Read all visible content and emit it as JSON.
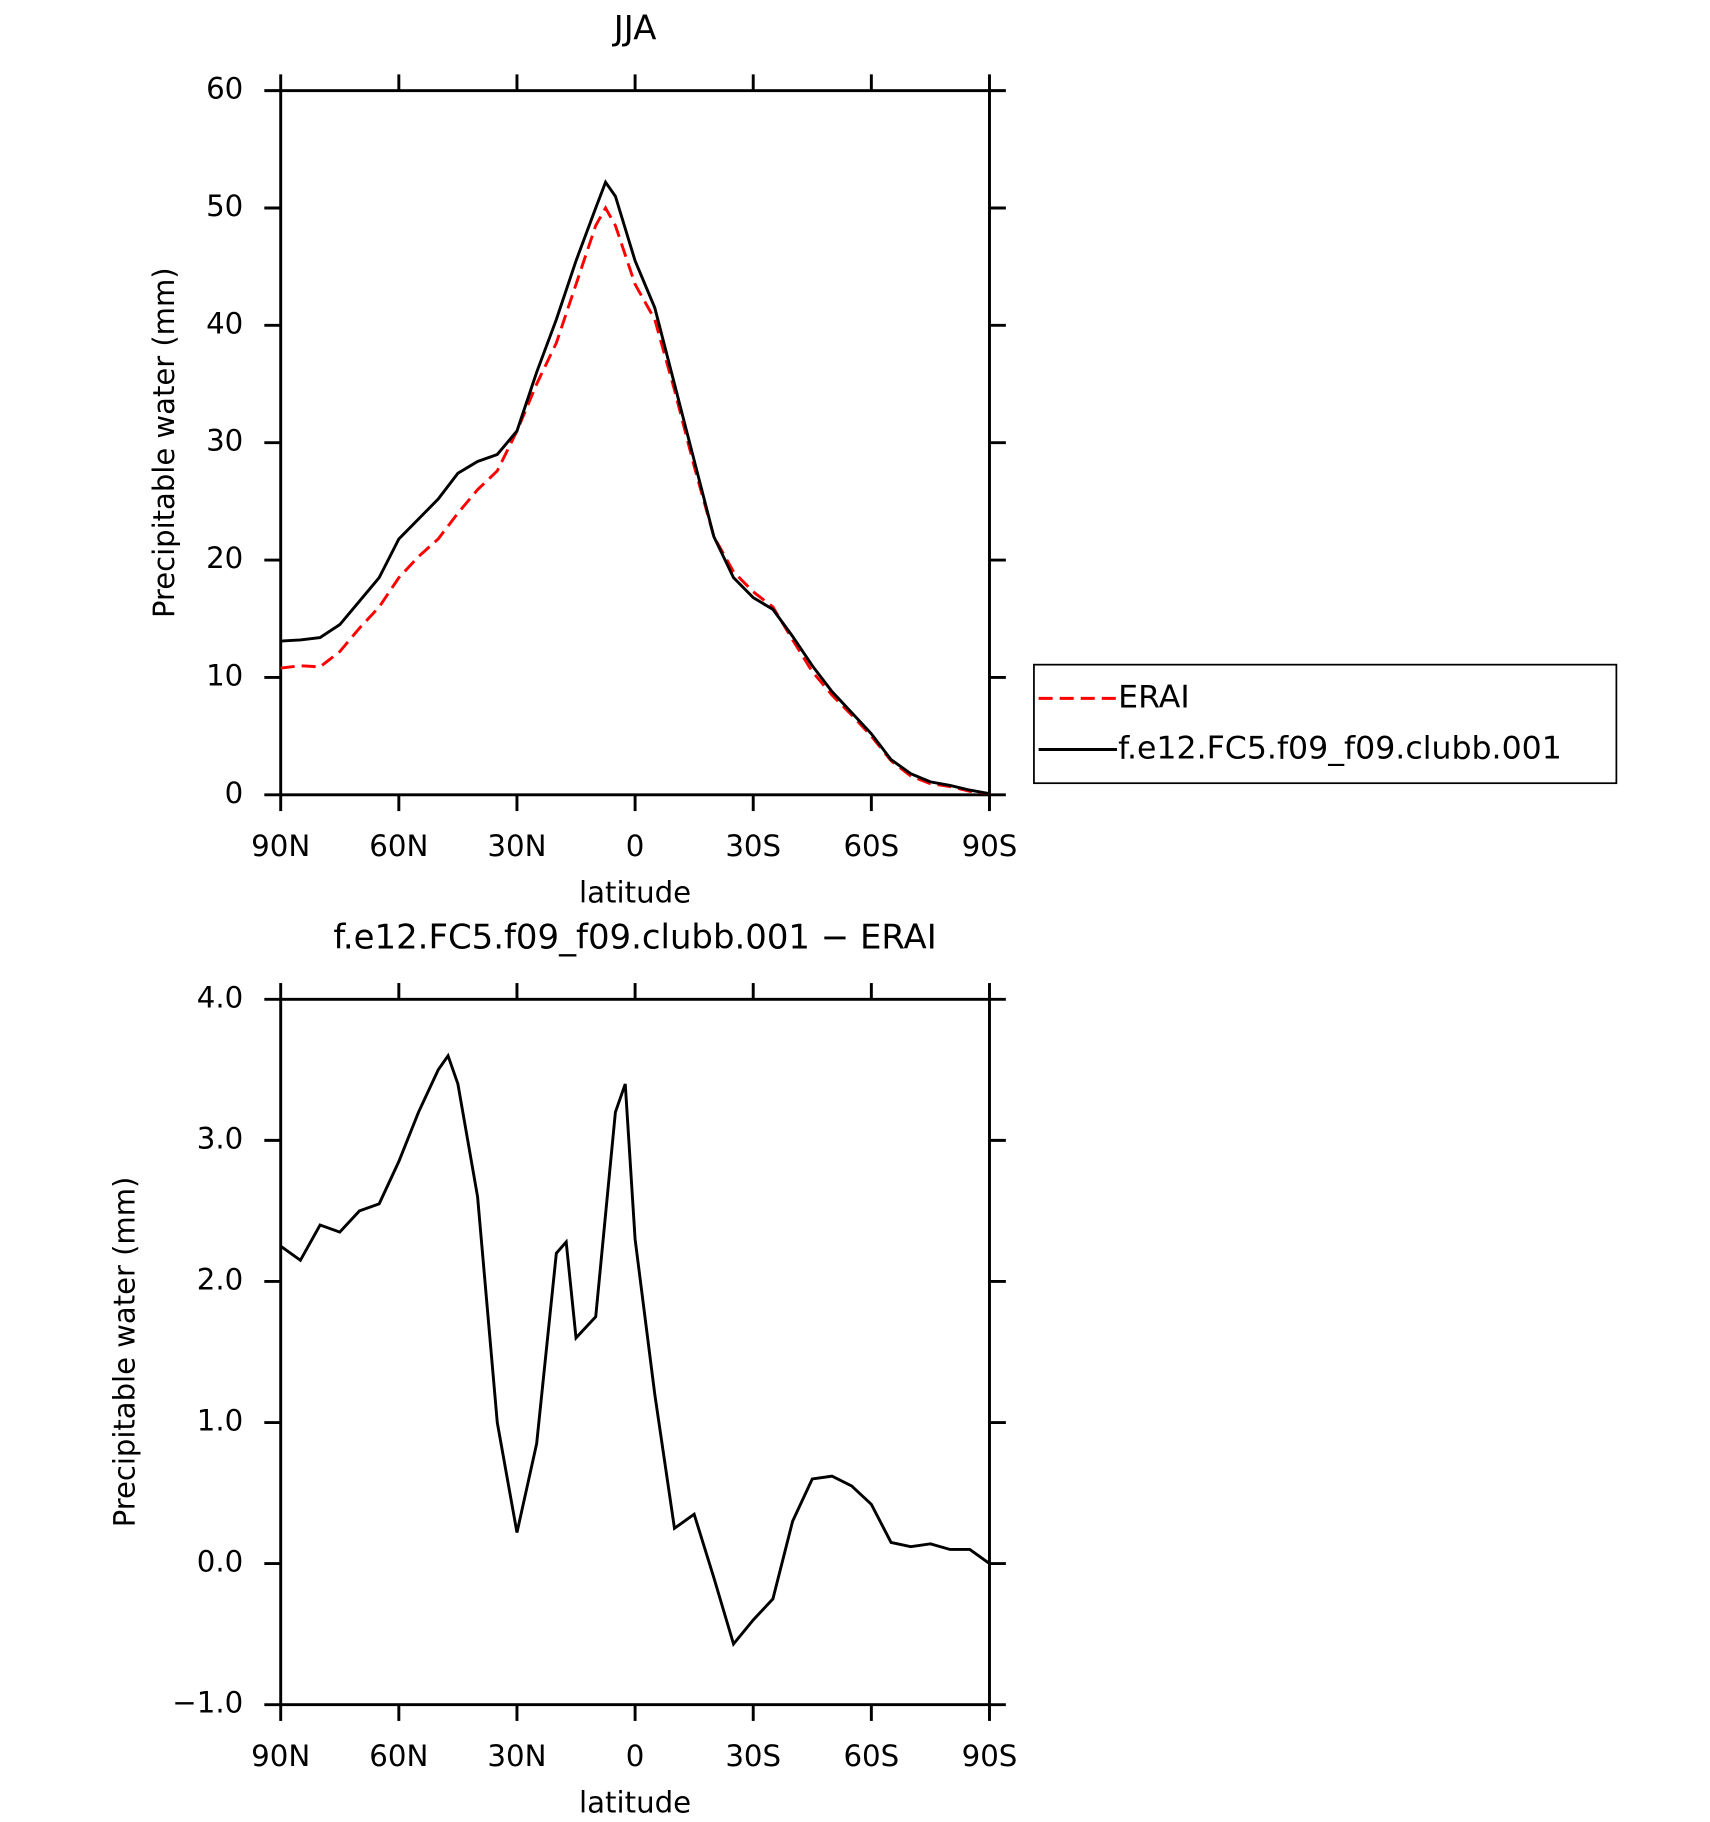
{
  "chart_data": [
    {
      "type": "line",
      "title": "JJA",
      "x_label": "latitude",
      "y_label": "Precipitable water (mm)",
      "x": [
        90,
        85,
        80,
        75,
        70,
        65,
        60,
        55,
        50,
        45,
        40,
        35,
        30,
        25,
        20,
        15,
        10,
        7.5,
        5,
        0,
        -5,
        -10,
        -15,
        -20,
        -25,
        -30,
        -35,
        -40,
        -45,
        -50,
        -55,
        -60,
        -65,
        -70,
        -75,
        -80,
        -85,
        -90
      ],
      "series": [
        {
          "name": "ERAI",
          "color": "#ff0000",
          "style": "dashed",
          "values": [
            10.8,
            11.0,
            10.9,
            12.2,
            14.2,
            16.0,
            18.5,
            20.3,
            21.8,
            24.0,
            26.0,
            27.6,
            31.0,
            35.0,
            38.5,
            43.5,
            48.5,
            50.0,
            48.5,
            43.5,
            40.5,
            34.5,
            28,
            22,
            19,
            17.3,
            16,
            13.2,
            10.5,
            8.5,
            6.8,
            5.0,
            2.9,
            1.6,
            0.95,
            0.7,
            0.3,
            0.1
          ]
        },
        {
          "name": "f.e12.FC5.f09_f09.clubb.001",
          "color": "#000000",
          "style": "solid",
          "values": [
            13.1,
            13.2,
            13.4,
            14.5,
            16.5,
            18.5,
            21.8,
            23.5,
            25.2,
            27.4,
            28.4,
            29.0,
            31.0,
            36.0,
            40.5,
            45.5,
            50.0,
            52.2,
            51.0,
            45.5,
            41.5,
            35,
            28.5,
            22,
            18.5,
            16.8,
            15.8,
            13.5,
            11,
            8.8,
            7,
            5.2,
            3,
            1.8,
            1.1,
            0.8,
            0.4,
            0.1
          ]
        }
      ],
      "xlim": [
        90,
        -90
      ],
      "xticks": [
        {
          "value": 90,
          "label": "90N"
        },
        {
          "value": 60,
          "label": "60N"
        },
        {
          "value": 30,
          "label": "30N"
        },
        0,
        {
          "value": -30,
          "label": "30S"
        },
        {
          "value": -60,
          "label": "60S"
        },
        {
          "value": -90,
          "label": "90S"
        }
      ],
      "ylim": [
        0,
        60
      ],
      "yticks": [
        0,
        10,
        20,
        30,
        40,
        50,
        60
      ],
      "legend": "right"
    },
    {
      "type": "line",
      "title": "f.e12.FC5.f09_f09.clubb.001 − ERAI",
      "x_label": "latitude",
      "y_label": "Precipitable water (mm)",
      "x": [
        90,
        85,
        80,
        75,
        70,
        65,
        60,
        55,
        50,
        47.5,
        45,
        40,
        35,
        30,
        25,
        20,
        17.5,
        15,
        10,
        5,
        2.5,
        0,
        -5,
        -10,
        -15,
        -20,
        -25,
        -30,
        -35,
        -40,
        -45,
        -50,
        -55,
        -60,
        -65,
        -70,
        -75,
        -80,
        -85,
        -90
      ],
      "color": "#000000",
      "values": [
        2.25,
        2.15,
        2.4,
        2.35,
        2.5,
        2.55,
        2.85,
        3.2,
        3.5,
        3.6,
        3.4,
        2.6,
        1.0,
        0.22,
        0.85,
        2.2,
        2.28,
        1.6,
        1.75,
        3.2,
        3.4,
        2.3,
        1.2,
        0.25,
        0.35,
        -0.1,
        -0.57,
        -0.4,
        -0.25,
        0.3,
        0.6,
        0.62,
        0.55,
        0.42,
        0.15,
        0.12,
        0.14,
        0.1,
        0.1,
        0.0
      ],
      "xlim": [
        90,
        -90
      ],
      "xticks": [
        {
          "value": 90,
          "label": "90N"
        },
        {
          "value": 60,
          "label": "60N"
        },
        {
          "value": 30,
          "label": "30N"
        },
        0,
        {
          "value": -30,
          "label": "30S"
        },
        {
          "value": -60,
          "label": "60S"
        },
        {
          "value": -90,
          "label": "90S"
        }
      ],
      "ylim": [
        -1,
        4
      ],
      "yticks": [
        {
          "value": -1,
          "label": "−1.0"
        },
        {
          "value": 0,
          "label": "0.0"
        },
        {
          "value": 1,
          "label": "1.0"
        },
        {
          "value": 2,
          "label": "2.0"
        },
        {
          "value": 3,
          "label": "3.0"
        },
        {
          "value": 4,
          "label": "4.0"
        }
      ]
    }
  ]
}
